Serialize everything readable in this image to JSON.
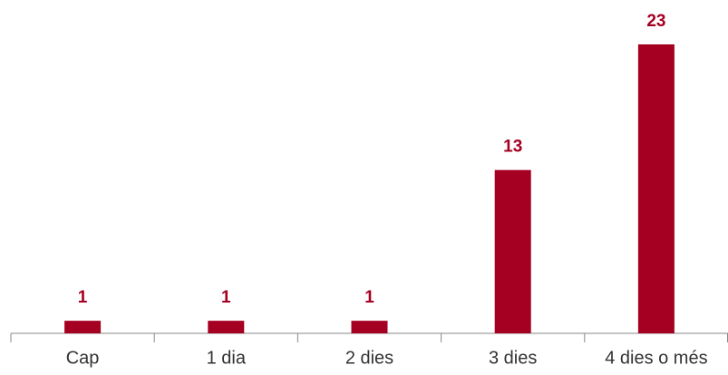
{
  "chart_data": {
    "type": "bar",
    "categories": [
      "Cap",
      "1 dia",
      "2 dies",
      "3 dies",
      "4 dies o més"
    ],
    "values": [
      1,
      1,
      1,
      13,
      23
    ],
    "color": "#a50021",
    "ylim": [
      0,
      23
    ],
    "grid": false
  }
}
